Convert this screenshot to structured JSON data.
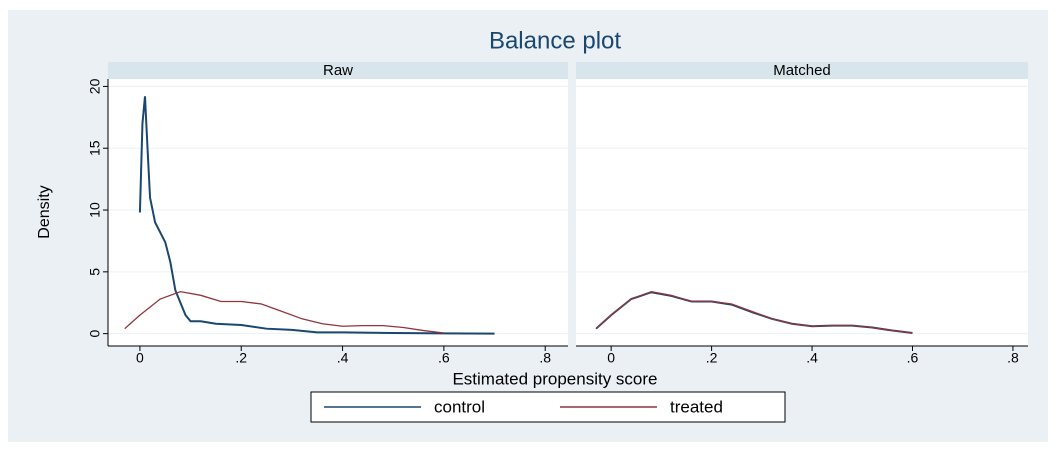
{
  "chart_data": [
    {
      "type": "line",
      "title": "Balance plot",
      "subtitle": "Raw",
      "x_label": "Estimated propensity score",
      "y_label": "Density",
      "xlim": [
        -0.063,
        0.845
      ],
      "ylim": [
        -1,
        20.6
      ],
      "xticks": [
        0,
        {
          "value": 0.2,
          "label": ".2"
        },
        {
          "value": 0.4,
          "label": ".4"
        },
        {
          "value": 0.6,
          "label": ".6"
        },
        {
          "value": 0.8,
          "label": ".8"
        }
      ],
      "yticks": [
        0,
        5,
        10,
        15,
        20
      ],
      "grid": true,
      "y_tick_labels": true,
      "series": [
        {
          "name": "control",
          "color": "#1a476f",
          "x": [
            0,
            0.005,
            0.01,
            0.015,
            0.02,
            0.03,
            0.04,
            0.05,
            0.06,
            0.07,
            0.08,
            0.09,
            0.1,
            0.12,
            0.15,
            0.2,
            0.25,
            0.3,
            0.35,
            0.4,
            0.5,
            0.6,
            0.7
          ],
          "values": [
            9.8,
            17,
            19.2,
            15,
            11,
            9,
            8.2,
            7.4,
            5.8,
            3.5,
            2.5,
            1.5,
            1,
            1,
            0.8,
            0.7,
            0.4,
            0.3,
            0.1,
            0.1,
            0.05,
            0.02,
            0
          ]
        },
        {
          "name": "treated",
          "color": "#90353b",
          "x": [
            -0.03,
            0,
            0.04,
            0.08,
            0.12,
            0.16,
            0.2,
            0.24,
            0.28,
            0.32,
            0.36,
            0.4,
            0.44,
            0.48,
            0.52,
            0.56,
            0.6
          ],
          "values": [
            0.4,
            1.5,
            2.8,
            3.4,
            3.1,
            2.6,
            2.6,
            2.4,
            1.8,
            1.2,
            0.8,
            0.6,
            0.65,
            0.65,
            0.5,
            0.25,
            0.05
          ]
        }
      ]
    },
    {
      "type": "line",
      "subtitle": "Matched",
      "xlim": [
        -0.07,
        0.83
      ],
      "ylim": [
        -1,
        20.6
      ],
      "xticks": [
        0,
        {
          "value": 0.2,
          "label": ".2"
        },
        {
          "value": 0.4,
          "label": ".4"
        },
        {
          "value": 0.6,
          "label": ".6"
        },
        {
          "value": 0.8,
          "label": ".8"
        }
      ],
      "yticks": [
        0,
        5,
        10,
        15,
        20
      ],
      "grid": true,
      "y_tick_labels": false,
      "series": [
        {
          "name": "control",
          "color": "#1a476f",
          "x": [
            -0.03,
            0,
            0.04,
            0.08,
            0.12,
            0.16,
            0.2,
            0.24,
            0.28,
            0.32,
            0.36,
            0.4,
            0.44,
            0.48,
            0.52,
            0.56,
            0.6
          ],
          "values": [
            0.4,
            1.5,
            2.8,
            3.35,
            3.05,
            2.6,
            2.6,
            2.35,
            1.75,
            1.2,
            0.8,
            0.6,
            0.65,
            0.65,
            0.5,
            0.25,
            0.05
          ]
        },
        {
          "name": "treated",
          "color": "#90353b",
          "x": [
            -0.03,
            0,
            0.04,
            0.08,
            0.12,
            0.16,
            0.2,
            0.24,
            0.28,
            0.32,
            0.36,
            0.4,
            0.44,
            0.48,
            0.52,
            0.56,
            0.6
          ],
          "values": [
            0.4,
            1.5,
            2.8,
            3.4,
            3.1,
            2.6,
            2.6,
            2.4,
            1.8,
            1.2,
            0.8,
            0.6,
            0.65,
            0.65,
            0.5,
            0.25,
            0.05
          ]
        }
      ]
    }
  ]
}
